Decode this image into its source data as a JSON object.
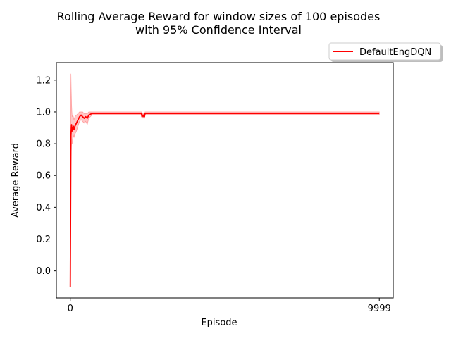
{
  "chart_data": {
    "type": "line",
    "title_line1": "Rolling Average Reward for window sizes of 100 episodes",
    "title_line2": "with 95% Confidence Interval",
    "xlabel": "Episode",
    "ylabel": "Average Reward",
    "xlim": [
      -450,
      10450
    ],
    "ylim": [
      -0.17,
      1.31
    ],
    "x_ticks": [
      0,
      9999
    ],
    "x_tick_labels": [
      "0",
      "9999"
    ],
    "y_ticks": [
      0.0,
      0.2,
      0.4,
      0.6,
      0.8,
      1.0,
      1.2
    ],
    "y_tick_labels": [
      "0.0",
      "0.2",
      "0.4",
      "0.6",
      "0.8",
      "1.0",
      "1.2"
    ],
    "grid": false,
    "legend_position": "outside-top-right",
    "series": [
      {
        "name": "DefaultEngDQN",
        "color": "#ff0000",
        "ci_color": "#ff0000",
        "x": [
          0,
          20,
          40,
          60,
          80,
          100,
          120,
          150,
          200,
          250,
          300,
          350,
          400,
          450,
          500,
          550,
          600,
          700,
          800,
          1000,
          1500,
          2000,
          2300,
          2320,
          2330,
          2340,
          2360,
          2380,
          2400,
          2420,
          2440,
          2460,
          2480,
          3000,
          4000,
          5000,
          6000,
          7000,
          8000,
          9000,
          9999
        ],
        "y": [
          -0.1,
          0.85,
          0.92,
          0.88,
          0.9,
          0.91,
          0.89,
          0.91,
          0.93,
          0.95,
          0.97,
          0.98,
          0.97,
          0.96,
          0.97,
          0.96,
          0.98,
          0.99,
          0.99,
          0.99,
          0.99,
          0.99,
          0.99,
          0.97,
          0.97,
          0.98,
          0.98,
          0.97,
          0.97,
          0.99,
          0.99,
          0.99,
          0.99,
          0.99,
          0.99,
          0.99,
          0.99,
          0.99,
          0.99,
          0.99,
          0.99
        ],
        "ci_upper": [
          0.0,
          1.24,
          1.05,
          0.97,
          0.98,
          0.97,
          0.95,
          0.97,
          0.98,
          0.99,
          1.0,
          1.0,
          1.0,
          0.99,
          0.99,
          0.99,
          1.0,
          1.0,
          1.0,
          1.0,
          1.0,
          1.0,
          1.0,
          0.98,
          0.98,
          0.99,
          0.99,
          0.98,
          0.98,
          1.0,
          1.0,
          1.0,
          1.0,
          1.0,
          1.0,
          1.0,
          1.0,
          1.0,
          1.0,
          1.0,
          1.0
        ],
        "ci_lower": [
          -0.1,
          0.7,
          0.8,
          0.8,
          0.83,
          0.85,
          0.84,
          0.86,
          0.88,
          0.91,
          0.94,
          0.95,
          0.94,
          0.93,
          0.94,
          0.92,
          0.96,
          0.98,
          0.98,
          0.98,
          0.98,
          0.98,
          0.98,
          0.96,
          0.96,
          0.97,
          0.97,
          0.96,
          0.96,
          0.98,
          0.98,
          0.98,
          0.98,
          0.98,
          0.98,
          0.98,
          0.98,
          0.98,
          0.98,
          0.98,
          0.98
        ]
      }
    ]
  }
}
